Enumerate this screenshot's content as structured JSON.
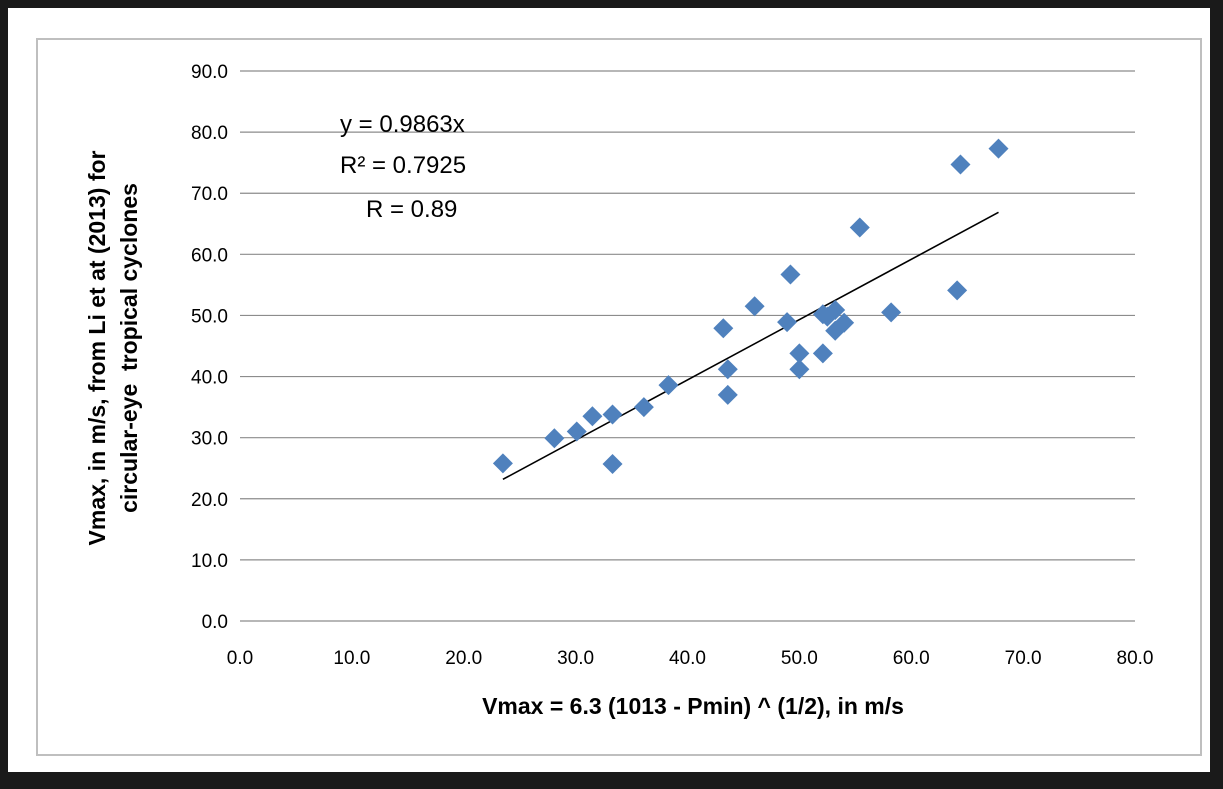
{
  "chart_data": {
    "type": "scatter",
    "xlabel": "Vmax = 6.3 (1013 - Pmin) ^ (1/2), in m/s",
    "ylabel_line1": "Vmax, in m/s, from Li et at (2013) for",
    "ylabel_line2": "circular-eye  tropical cyclones",
    "xlim": [
      0,
      80
    ],
    "ylim": [
      0,
      90
    ],
    "x_ticks": [
      "0.0",
      "10.0",
      "20.0",
      "30.0",
      "40.0",
      "50.0",
      "60.0",
      "70.0",
      "80.0"
    ],
    "y_ticks": [
      "0.0",
      "10.0",
      "20.0",
      "30.0",
      "40.0",
      "50.0",
      "60.0",
      "70.0",
      "80.0",
      "90.0"
    ],
    "grid": "horizontal",
    "marker_color": "#4f81bd",
    "annotations": [
      "y = 0.9863x",
      "R² = 0.7925",
      "R = 0.89"
    ],
    "trendline": {
      "slope": 0.9863,
      "x_range": [
        23.5,
        67.8
      ]
    },
    "points": [
      [
        23.5,
        25.8
      ],
      [
        28.1,
        29.9
      ],
      [
        30.1,
        31.0
      ],
      [
        31.5,
        33.5
      ],
      [
        33.3,
        33.8
      ],
      [
        33.3,
        25.7
      ],
      [
        36.1,
        35.0
      ],
      [
        38.3,
        38.6
      ],
      [
        43.2,
        47.9
      ],
      [
        43.6,
        41.2
      ],
      [
        43.6,
        37.0
      ],
      [
        46.0,
        51.5
      ],
      [
        48.9,
        48.9
      ],
      [
        49.2,
        56.7
      ],
      [
        50.0,
        43.8
      ],
      [
        50.0,
        41.2
      ],
      [
        52.1,
        43.8
      ],
      [
        52.1,
        50.2
      ],
      [
        52.5,
        49.8
      ],
      [
        53.2,
        50.9
      ],
      [
        53.2,
        47.5
      ],
      [
        54.0,
        48.8
      ],
      [
        55.4,
        64.4
      ],
      [
        58.2,
        50.5
      ],
      [
        64.1,
        54.1
      ],
      [
        64.4,
        74.7
      ],
      [
        67.8,
        77.3
      ]
    ]
  }
}
